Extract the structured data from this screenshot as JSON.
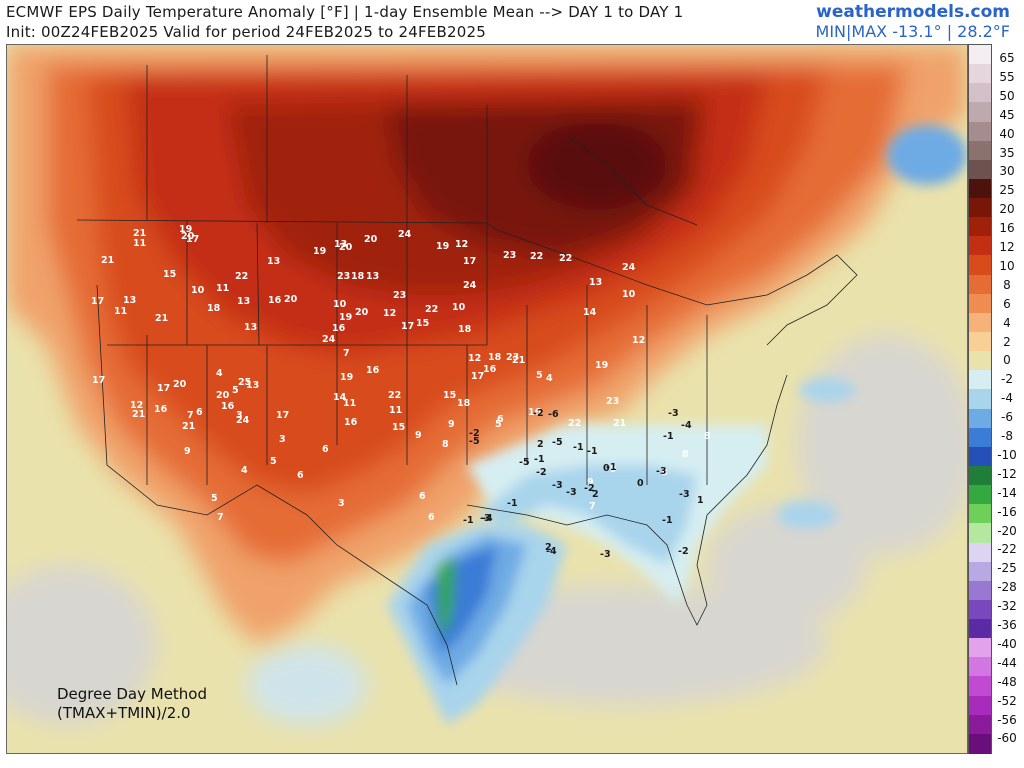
{
  "header": {
    "title_line1": "ECMWF EPS Daily Temperature Anomaly [°F] | 1-day Ensemble Mean --> DAY 1 to DAY 1",
    "title_line2": "Init: 00Z24FEB2025 Valid for period 24FEB2025 to 24FEB2025",
    "brand": "weathermodels.com",
    "minmax": "MIN|MAX -13.1° | 28.2°F"
  },
  "map": {
    "method_line1": "Degree Day Method",
    "method_line2": "(TMAX+TMIN)/2.0",
    "values": [
      "8",
      "5",
      "9",
      "5",
      "6",
      "13",
      "12",
      "13",
      "17",
      "17",
      "17",
      "21",
      "21",
      "24",
      "24",
      "24",
      "21",
      "23",
      "23",
      "20",
      "20",
      "21",
      "16",
      "18",
      "22",
      "21",
      "15",
      "20",
      "11",
      "12",
      "10",
      "16",
      "14",
      "19",
      "22",
      "23",
      "25",
      "22",
      "23",
      "23",
      "24",
      "16",
      "18",
      "17",
      "24",
      "17",
      "5",
      "7",
      "11",
      "15",
      "17",
      "13",
      "21",
      "16",
      "18",
      "20",
      "20",
      "21",
      "22",
      "22",
      "20",
      "13",
      "13",
      "11",
      "22",
      "19",
      "19",
      "19",
      "20",
      "17",
      "19",
      "17",
      "18",
      "13",
      "12",
      "11",
      "10",
      "9",
      "10",
      "11",
      "12",
      "16",
      "18",
      "19",
      "16",
      "14",
      "16",
      "16",
      "15",
      "15",
      "13",
      "12",
      "10",
      "9",
      "9",
      "8",
      "6",
      "6",
      "5",
      "4",
      "3",
      "7",
      "8",
      "7",
      "5",
      "6",
      "3",
      "0",
      "-1",
      "-2",
      "-3",
      "-2",
      "-1",
      "-3",
      "-2",
      "-1",
      "-3",
      "-4",
      "-5",
      "-6",
      "-3",
      "-3",
      "-1",
      "2",
      "0",
      "-1",
      "-2",
      "-4",
      "-3",
      "-5",
      "-4",
      "-3",
      "-5",
      "13",
      "8",
      "9",
      "6",
      "4",
      "1",
      "-1",
      "2",
      "3",
      "-1",
      "-2",
      "-1",
      "4",
      "2",
      "7",
      "6"
    ]
  },
  "colorbar": {
    "ticks": [
      "65",
      "55",
      "50",
      "45",
      "40",
      "35",
      "30",
      "25",
      "20",
      "16",
      "12",
      "10",
      "8",
      "6",
      "4",
      "2",
      "0",
      "-2",
      "-4",
      "-6",
      "-8",
      "-10",
      "-12",
      "-14",
      "-16",
      "-20",
      "-22",
      "-25",
      "-28",
      "-32",
      "-36",
      "-40",
      "-44",
      "-48",
      "-52",
      "-56",
      "-60"
    ],
    "colors": [
      "#f4eef2",
      "#e4d6dc",
      "#d4c0c8",
      "#bda9ae",
      "#a58d8f",
      "#8c726e",
      "#6e5250",
      "#4e120c",
      "#781608",
      "#a0200a",
      "#c42e12",
      "#d84c1c",
      "#e56c34",
      "#ef8c52",
      "#f5b27a",
      "#f8d096",
      "#eae2ac",
      "#d6eef2",
      "#a8d4ec",
      "#6eaae4",
      "#3a7cd6",
      "#2450b8",
      "#1e7e3a",
      "#36a840",
      "#6ed058",
      "#b4e8a0",
      "#dcd4f0",
      "#b8a8e4",
      "#9878d0",
      "#7848bc",
      "#5c2aa4",
      "#e2a2ec",
      "#d276e2",
      "#c04ad2",
      "#a82cbc",
      "#8a1c9c",
      "#6a0e7c"
    ]
  }
}
